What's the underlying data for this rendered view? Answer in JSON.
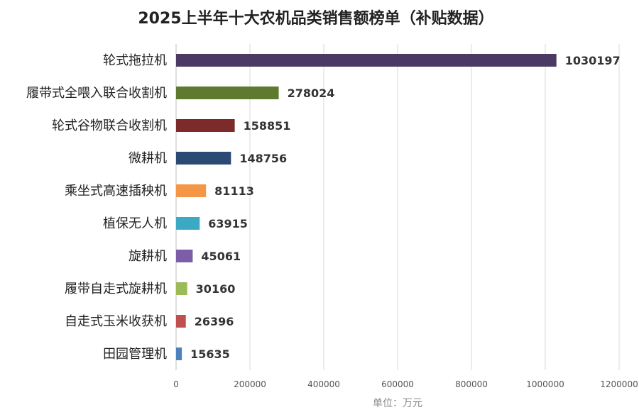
{
  "chart_data": {
    "type": "bar",
    "orientation": "horizontal",
    "title": "2025上半年十大农机品类销售额榜单（补贴数据）",
    "categories": [
      "轮式拖拉机",
      "履带式全喂入联合收割机",
      "轮式谷物联合收割机",
      "微耕机",
      "乘坐式高速插秧机",
      "植保无人机",
      "旋耕机",
      "履带自走式旋耕机",
      "自走式玉米收获机",
      "田园管理机"
    ],
    "values": [
      1030197,
      278024,
      158851,
      148756,
      81113,
      63915,
      45061,
      30160,
      26396,
      15635
    ],
    "value_labels": [
      "1030197",
      "278024",
      "158851",
      "148756",
      "81113",
      "63915",
      "45061",
      "30160",
      "26396",
      "15635"
    ],
    "colors": [
      "#4b3a63",
      "#5d7a2e",
      "#7c2a2a",
      "#2b4a73",
      "#f59646",
      "#3ca9c4",
      "#7b5ea7",
      "#9bbb59",
      "#c0504d",
      "#4f81bd"
    ],
    "xlim": [
      0,
      1200000
    ],
    "xticks": [
      0,
      200000,
      400000,
      600000,
      800000,
      1000000,
      1200000
    ],
    "xtick_labels": [
      "0",
      "200000",
      "400000",
      "600000",
      "800000",
      "1000000",
      "1200000"
    ],
    "unit_label": "单位：万元",
    "grid": true,
    "legend": "none"
  }
}
